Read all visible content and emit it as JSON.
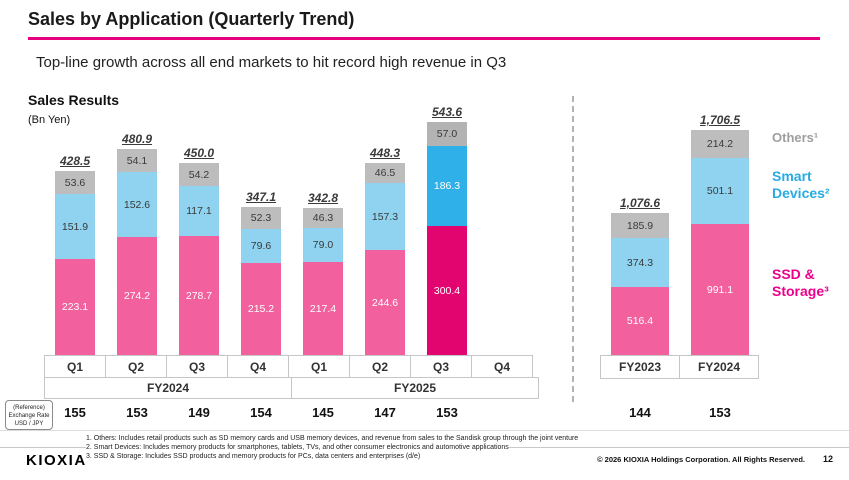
{
  "header": {
    "title": "Sales by Application (Quarterly Trend)",
    "subtitle": "Top-line growth across all end markets to hit record high revenue in Q3"
  },
  "chart_heading": {
    "title": "Sales Results",
    "unit": "(Bn Yen)"
  },
  "chart_data": {
    "type": "bar",
    "stacked": true,
    "title": "Sales Results",
    "unit": "Bn Yen",
    "series_order_bottom_to_top": [
      "ssd",
      "smart",
      "others"
    ],
    "legend": [
      {
        "key": "others",
        "label": "Others¹",
        "color": "#9e9e9e"
      },
      {
        "key": "smart",
        "label": "Smart Devices²",
        "color": "#29abe2"
      },
      {
        "key": "ssd",
        "label": "SSD & Storage³",
        "color": "#ec008c"
      }
    ],
    "quarterly_groups": [
      {
        "label": "FY2024",
        "bars": [
          {
            "quarter": "Q1",
            "total": 428.5,
            "ssd": 223.1,
            "smart": 151.9,
            "others": 53.6,
            "fx": "155"
          },
          {
            "quarter": "Q2",
            "total": 480.9,
            "ssd": 274.2,
            "smart": 152.6,
            "others": 54.1,
            "fx": "153"
          },
          {
            "quarter": "Q3",
            "total": 450.0,
            "ssd": 278.7,
            "smart": 117.1,
            "others": 54.2,
            "fx": "149"
          },
          {
            "quarter": "Q4",
            "total": 347.1,
            "ssd": 215.2,
            "smart": 79.6,
            "others": 52.3,
            "fx": "154"
          }
        ]
      },
      {
        "label": "FY2025",
        "bars": [
          {
            "quarter": "Q1",
            "total": 342.8,
            "ssd": 217.4,
            "smart": 79.0,
            "others": 46.3,
            "fx": "145"
          },
          {
            "quarter": "Q2",
            "total": 448.3,
            "ssd": 244.6,
            "smart": 157.3,
            "others": 46.5,
            "fx": "147"
          },
          {
            "quarter": "Q3",
            "total": 543.6,
            "ssd": 300.4,
            "smart": 186.3,
            "others": 57.0,
            "fx": "153",
            "highlight": true
          },
          {
            "quarter": "Q4",
            "empty": true,
            "fx": ""
          }
        ]
      }
    ],
    "annual_bars": [
      {
        "label": "FY2023",
        "total": 1076.6,
        "ssd": 516.4,
        "smart": 374.3,
        "others": 185.9,
        "fx": "144"
      },
      {
        "label": "FY2024",
        "total": 1706.5,
        "ssd": 991.1,
        "smart": 501.1,
        "others": 214.2,
        "fx": "153"
      }
    ],
    "fx_label_lines": [
      "(Reference)",
      "Exchange Rate",
      "USD / JPY"
    ]
  },
  "footnotes": [
    "1. Others: Includes retail products such as SD memory cards and USB memory devices, and revenue from sales to the Sandisk group through the joint venture",
    "2. Smart Devices: Includes memory products for smartphones, tablets, TVs, and other consumer electronics and automotive applications",
    "3. SSD & Storage: Includes SSD products and memory products for PCs, data centers and enterprises (d/e)"
  ],
  "footer": {
    "logo": "KIOXIA",
    "copyright": "© 2026 KIOXIA Holdings Corporation. All Rights Reserved.",
    "page_number": "12"
  }
}
